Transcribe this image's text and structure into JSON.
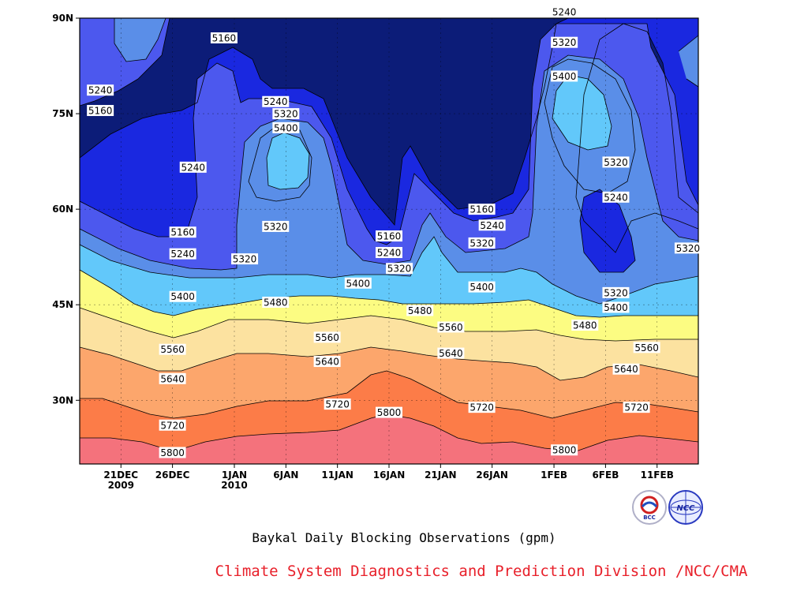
{
  "caption": {
    "subtitle": "Baykal Daily Blocking Observations (gpm)",
    "credit": "Climate System Diagnostics and Prediction Division /NCC/CMA"
  },
  "logos": [
    "BCC",
    "NCC"
  ],
  "chart_data": {
    "type": "contour",
    "title": "",
    "xlabel": "",
    "ylabel": "",
    "y_ticks": [
      "30N",
      "45N",
      "60N",
      "75N",
      "90N"
    ],
    "y_range": [
      20,
      90
    ],
    "x_ticks": [
      {
        "day": 5,
        "label": "21DEC",
        "label2": "2009"
      },
      {
        "day": 10,
        "label": "26DEC",
        "label2": ""
      },
      {
        "day": 16,
        "label": "1JAN",
        "label2": "2010"
      },
      {
        "day": 21,
        "label": "6JAN",
        "label2": ""
      },
      {
        "day": 26,
        "label": "11JAN",
        "label2": ""
      },
      {
        "day": 31,
        "label": "16JAN",
        "label2": ""
      },
      {
        "day": 36,
        "label": "21JAN",
        "label2": ""
      },
      {
        "day": 41,
        "label": "26JAN",
        "label2": ""
      },
      {
        "day": 47,
        "label": "1FEB",
        "label2": ""
      },
      {
        "day": 52,
        "label": "6FEB",
        "label2": ""
      },
      {
        "day": 57,
        "label": "11FEB",
        "label2": ""
      }
    ],
    "x_range_days": [
      1,
      61
    ],
    "contour_levels": [
      5160,
      5240,
      5320,
      5400,
      5480,
      5560,
      5640,
      5720,
      5800
    ],
    "fill_colors": [
      "#0c1c78",
      "#1a28e0",
      "#4c58ee",
      "#5a8ee8",
      "#62c8fa",
      "#fcfc82",
      "#fce2a0",
      "#fca66c",
      "#fc7c48",
      "#f4727c"
    ],
    "contour_labels": [
      {
        "text": "5240",
        "day": 3,
        "lat": 78.7
      },
      {
        "text": "5160",
        "day": 3,
        "lat": 75.5
      },
      {
        "text": "5160",
        "day": 15,
        "lat": 86.9
      },
      {
        "text": "5240",
        "day": 12,
        "lat": 66.6
      },
      {
        "text": "5240",
        "day": 20,
        "lat": 76.9
      },
      {
        "text": "5320",
        "day": 21,
        "lat": 75.0
      },
      {
        "text": "5400",
        "day": 21,
        "lat": 72.8
      },
      {
        "text": "5320",
        "day": 20,
        "lat": 57.3
      },
      {
        "text": "5160",
        "day": 11,
        "lat": 56.4
      },
      {
        "text": "5240",
        "day": 11,
        "lat": 53.0
      },
      {
        "text": "5320",
        "day": 17,
        "lat": 52.2
      },
      {
        "text": "5400",
        "day": 11,
        "lat": 46.3
      },
      {
        "text": "5480",
        "day": 20,
        "lat": 45.4
      },
      {
        "text": "5400",
        "day": 28,
        "lat": 48.4
      },
      {
        "text": "5160",
        "day": 31,
        "lat": 55.8
      },
      {
        "text": "5240",
        "day": 31,
        "lat": 53.2
      },
      {
        "text": "5320",
        "day": 32,
        "lat": 50.7
      },
      {
        "text": "5480",
        "day": 34,
        "lat": 44.1
      },
      {
        "text": "5560",
        "day": 37,
        "lat": 41.5
      },
      {
        "text": "5400",
        "day": 40,
        "lat": 47.8
      },
      {
        "text": "5160",
        "day": 40,
        "lat": 60.0
      },
      {
        "text": "5240",
        "day": 41,
        "lat": 57.5
      },
      {
        "text": "5320",
        "day": 40,
        "lat": 54.7
      },
      {
        "text": "5640",
        "day": 37,
        "lat": 37.4
      },
      {
        "text": "5560",
        "day": 10,
        "lat": 38.0
      },
      {
        "text": "5640",
        "day": 10,
        "lat": 33.4
      },
      {
        "text": "5720",
        "day": 10,
        "lat": 26.1
      },
      {
        "text": "5800",
        "day": 10,
        "lat": 21.8
      },
      {
        "text": "5560",
        "day": 25,
        "lat": 39.9
      },
      {
        "text": "5640",
        "day": 25,
        "lat": 36.1
      },
      {
        "text": "5720",
        "day": 26,
        "lat": 29.4
      },
      {
        "text": "5800",
        "day": 31,
        "lat": 28.1
      },
      {
        "text": "5720",
        "day": 40,
        "lat": 28.9
      },
      {
        "text": "5800",
        "day": 48,
        "lat": 22.2
      },
      {
        "text": "5240",
        "day": 48,
        "lat": 91.0
      },
      {
        "text": "5320",
        "day": 48,
        "lat": 86.2
      },
      {
        "text": "5400",
        "day": 48,
        "lat": 80.9
      },
      {
        "text": "5320",
        "day": 53,
        "lat": 67.4
      },
      {
        "text": "5240",
        "day": 53,
        "lat": 61.9
      },
      {
        "text": "5320",
        "day": 60,
        "lat": 53.9
      },
      {
        "text": "5320",
        "day": 53,
        "lat": 46.9
      },
      {
        "text": "5400",
        "day": 53,
        "lat": 44.6
      },
      {
        "text": "5480",
        "day": 50,
        "lat": 41.8
      },
      {
        "text": "5560",
        "day": 56,
        "lat": 38.3
      },
      {
        "text": "5640",
        "day": 54,
        "lat": 34.9
      },
      {
        "text": "5720",
        "day": 55,
        "lat": 28.9
      }
    ]
  }
}
